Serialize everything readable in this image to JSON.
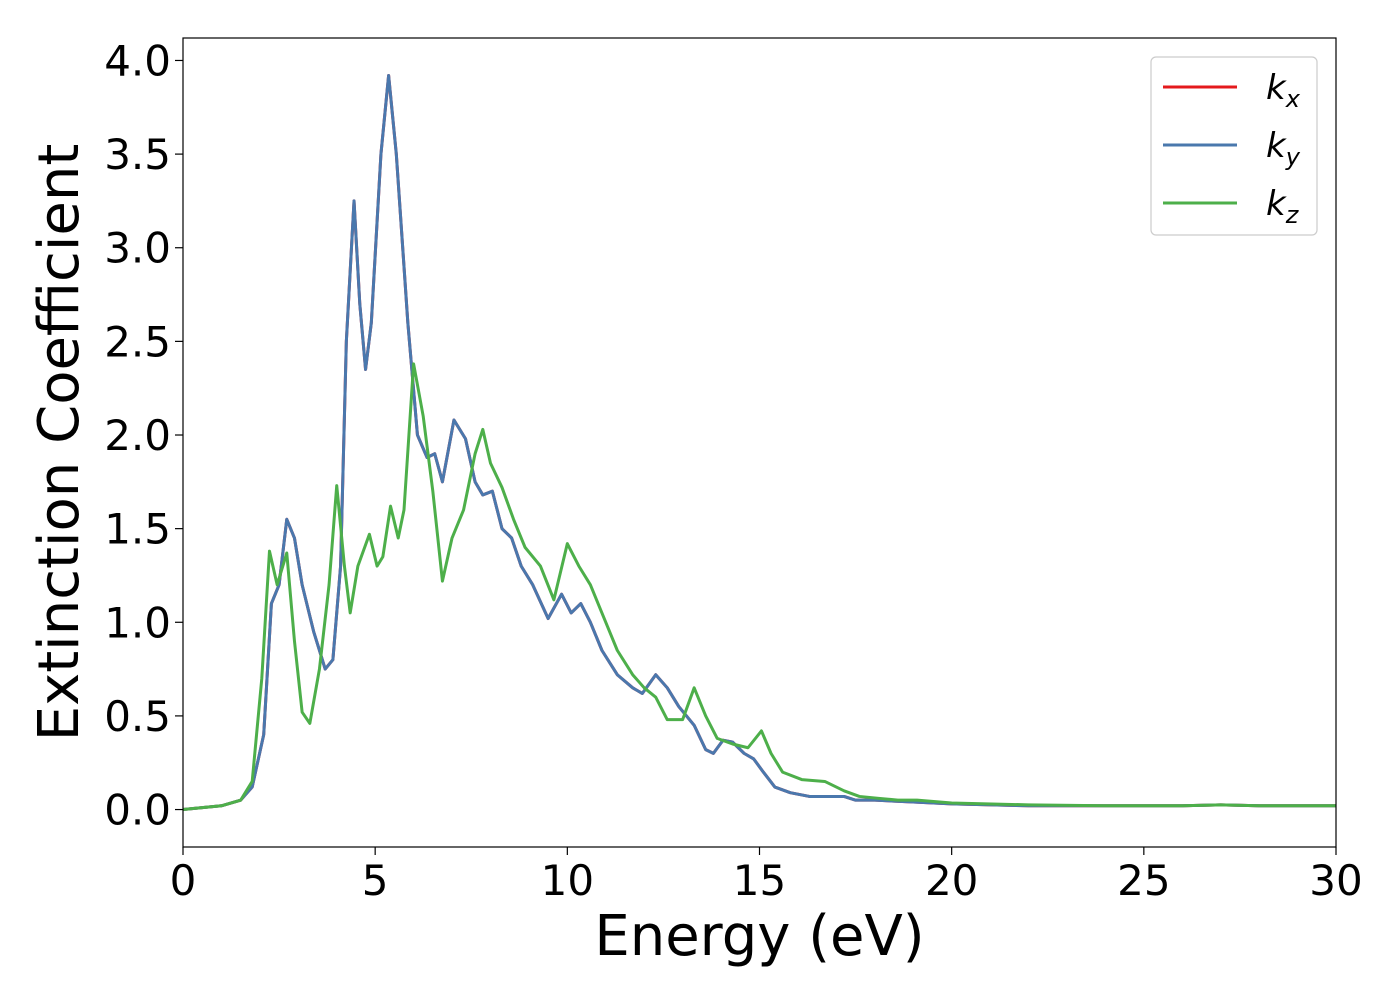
{
  "chart_data": {
    "type": "line",
    "xlabel": "Energy (eV)",
    "ylabel": "Extinction Coefficient",
    "xlim": [
      0,
      30
    ],
    "ylim": [
      -0.2,
      4.12
    ],
    "x_ticks": [
      "0",
      "5",
      "10",
      "15",
      "20",
      "25",
      "30"
    ],
    "y_ticks": [
      "0.0",
      "0.5",
      "1.0",
      "1.5",
      "2.0",
      "2.5",
      "3.0",
      "3.5",
      "4.0"
    ],
    "grid": false,
    "legend_position": "top-right",
    "series": [
      {
        "name": "k",
        "subscript": "x",
        "color": "#e41a1c",
        "points": [
          [
            0,
            0
          ],
          [
            0.5,
            0.01
          ],
          [
            1,
            0.02
          ],
          [
            1.5,
            0.05
          ],
          [
            1.8,
            0.12
          ],
          [
            2.1,
            0.4
          ],
          [
            2.3,
            1.1
          ],
          [
            2.5,
            1.2
          ],
          [
            2.7,
            1.55
          ],
          [
            2.9,
            1.45
          ],
          [
            3.1,
            1.2
          ],
          [
            3.4,
            0.95
          ],
          [
            3.7,
            0.75
          ],
          [
            3.9,
            0.8
          ],
          [
            4.1,
            1.3
          ],
          [
            4.25,
            2.5
          ],
          [
            4.45,
            3.25
          ],
          [
            4.6,
            2.7
          ],
          [
            4.75,
            2.35
          ],
          [
            4.9,
            2.6
          ],
          [
            5.15,
            3.5
          ],
          [
            5.35,
            3.92
          ],
          [
            5.55,
            3.5
          ],
          [
            5.85,
            2.6
          ],
          [
            6.1,
            2.0
          ],
          [
            6.35,
            1.88
          ],
          [
            6.55,
            1.9
          ],
          [
            6.75,
            1.75
          ],
          [
            7.05,
            2.08
          ],
          [
            7.35,
            1.98
          ],
          [
            7.6,
            1.75
          ],
          [
            7.8,
            1.68
          ],
          [
            8.05,
            1.7
          ],
          [
            8.3,
            1.5
          ],
          [
            8.55,
            1.45
          ],
          [
            8.8,
            1.3
          ],
          [
            9.1,
            1.2
          ],
          [
            9.5,
            1.02
          ],
          [
            9.85,
            1.15
          ],
          [
            10.1,
            1.05
          ],
          [
            10.35,
            1.1
          ],
          [
            10.6,
            1.0
          ],
          [
            10.9,
            0.85
          ],
          [
            11.3,
            0.72
          ],
          [
            11.7,
            0.65
          ],
          [
            11.95,
            0.62
          ],
          [
            12.3,
            0.72
          ],
          [
            12.6,
            0.65
          ],
          [
            12.9,
            0.55
          ],
          [
            13.3,
            0.45
          ],
          [
            13.6,
            0.32
          ],
          [
            13.8,
            0.3
          ],
          [
            14.05,
            0.37
          ],
          [
            14.3,
            0.36
          ],
          [
            14.6,
            0.3
          ],
          [
            14.85,
            0.27
          ],
          [
            15.1,
            0.2
          ],
          [
            15.4,
            0.12
          ],
          [
            15.8,
            0.09
          ],
          [
            16.3,
            0.07
          ],
          [
            16.8,
            0.07
          ],
          [
            17.2,
            0.07
          ],
          [
            17.5,
            0.05
          ],
          [
            18,
            0.05
          ],
          [
            18.5,
            0.045
          ],
          [
            19,
            0.04
          ],
          [
            20,
            0.03
          ],
          [
            22,
            0.02
          ],
          [
            24,
            0.02
          ],
          [
            26,
            0.02
          ],
          [
            27,
            0.025
          ],
          [
            28,
            0.02
          ],
          [
            29,
            0.02
          ],
          [
            30,
            0.02
          ]
        ]
      },
      {
        "name": "k",
        "subscript": "y",
        "color": "#4a78ad",
        "points": [
          [
            0,
            0
          ],
          [
            0.5,
            0.01
          ],
          [
            1,
            0.02
          ],
          [
            1.5,
            0.05
          ],
          [
            1.8,
            0.12
          ],
          [
            2.1,
            0.4
          ],
          [
            2.3,
            1.1
          ],
          [
            2.5,
            1.2
          ],
          [
            2.7,
            1.55
          ],
          [
            2.9,
            1.45
          ],
          [
            3.1,
            1.2
          ],
          [
            3.4,
            0.95
          ],
          [
            3.7,
            0.75
          ],
          [
            3.9,
            0.8
          ],
          [
            4.1,
            1.3
          ],
          [
            4.25,
            2.5
          ],
          [
            4.45,
            3.25
          ],
          [
            4.6,
            2.7
          ],
          [
            4.75,
            2.35
          ],
          [
            4.9,
            2.6
          ],
          [
            5.15,
            3.5
          ],
          [
            5.35,
            3.92
          ],
          [
            5.55,
            3.5
          ],
          [
            5.85,
            2.6
          ],
          [
            6.1,
            2.0
          ],
          [
            6.35,
            1.88
          ],
          [
            6.55,
            1.9
          ],
          [
            6.75,
            1.75
          ],
          [
            7.05,
            2.08
          ],
          [
            7.35,
            1.98
          ],
          [
            7.6,
            1.75
          ],
          [
            7.8,
            1.68
          ],
          [
            8.05,
            1.7
          ],
          [
            8.3,
            1.5
          ],
          [
            8.55,
            1.45
          ],
          [
            8.8,
            1.3
          ],
          [
            9.1,
            1.2
          ],
          [
            9.5,
            1.02
          ],
          [
            9.85,
            1.15
          ],
          [
            10.1,
            1.05
          ],
          [
            10.35,
            1.1
          ],
          [
            10.6,
            1.0
          ],
          [
            10.9,
            0.85
          ],
          [
            11.3,
            0.72
          ],
          [
            11.7,
            0.65
          ],
          [
            11.95,
            0.62
          ],
          [
            12.3,
            0.72
          ],
          [
            12.6,
            0.65
          ],
          [
            12.9,
            0.55
          ],
          [
            13.3,
            0.45
          ],
          [
            13.6,
            0.32
          ],
          [
            13.8,
            0.3
          ],
          [
            14.05,
            0.37
          ],
          [
            14.3,
            0.36
          ],
          [
            14.6,
            0.3
          ],
          [
            14.85,
            0.27
          ],
          [
            15.1,
            0.2
          ],
          [
            15.4,
            0.12
          ],
          [
            15.8,
            0.09
          ],
          [
            16.3,
            0.07
          ],
          [
            16.8,
            0.07
          ],
          [
            17.2,
            0.07
          ],
          [
            17.5,
            0.05
          ],
          [
            18,
            0.05
          ],
          [
            18.5,
            0.045
          ],
          [
            19,
            0.04
          ],
          [
            20,
            0.03
          ],
          [
            22,
            0.02
          ],
          [
            24,
            0.02
          ],
          [
            26,
            0.02
          ],
          [
            27,
            0.025
          ],
          [
            28,
            0.02
          ],
          [
            29,
            0.02
          ],
          [
            30,
            0.02
          ]
        ]
      },
      {
        "name": "k",
        "subscript": "z",
        "color": "#4daf4a",
        "points": [
          [
            0,
            0
          ],
          [
            0.5,
            0.01
          ],
          [
            1,
            0.02
          ],
          [
            1.5,
            0.05
          ],
          [
            1.8,
            0.15
          ],
          [
            2.05,
            0.7
          ],
          [
            2.25,
            1.38
          ],
          [
            2.45,
            1.2
          ],
          [
            2.7,
            1.37
          ],
          [
            2.9,
            0.9
          ],
          [
            3.1,
            0.52
          ],
          [
            3.3,
            0.46
          ],
          [
            3.55,
            0.75
          ],
          [
            3.8,
            1.2
          ],
          [
            4.0,
            1.73
          ],
          [
            4.2,
            1.3
          ],
          [
            4.35,
            1.05
          ],
          [
            4.55,
            1.3
          ],
          [
            4.85,
            1.47
          ],
          [
            5.05,
            1.3
          ],
          [
            5.2,
            1.35
          ],
          [
            5.4,
            1.62
          ],
          [
            5.6,
            1.45
          ],
          [
            5.75,
            1.6
          ],
          [
            6.0,
            2.38
          ],
          [
            6.25,
            2.1
          ],
          [
            6.5,
            1.7
          ],
          [
            6.75,
            1.22
          ],
          [
            7.0,
            1.45
          ],
          [
            7.3,
            1.6
          ],
          [
            7.6,
            1.9
          ],
          [
            7.8,
            2.03
          ],
          [
            8.0,
            1.85
          ],
          [
            8.3,
            1.72
          ],
          [
            8.6,
            1.55
          ],
          [
            8.9,
            1.4
          ],
          [
            9.3,
            1.3
          ],
          [
            9.65,
            1.12
          ],
          [
            10.0,
            1.42
          ],
          [
            10.3,
            1.3
          ],
          [
            10.6,
            1.2
          ],
          [
            10.9,
            1.05
          ],
          [
            11.3,
            0.85
          ],
          [
            11.7,
            0.72
          ],
          [
            12.0,
            0.65
          ],
          [
            12.3,
            0.6
          ],
          [
            12.6,
            0.48
          ],
          [
            13.0,
            0.48
          ],
          [
            13.3,
            0.65
          ],
          [
            13.6,
            0.5
          ],
          [
            13.9,
            0.38
          ],
          [
            14.3,
            0.35
          ],
          [
            14.7,
            0.33
          ],
          [
            15.05,
            0.42
          ],
          [
            15.3,
            0.3
          ],
          [
            15.6,
            0.2
          ],
          [
            16.1,
            0.16
          ],
          [
            16.7,
            0.15
          ],
          [
            17.2,
            0.1
          ],
          [
            17.6,
            0.07
          ],
          [
            18.1,
            0.06
          ],
          [
            18.6,
            0.05
          ],
          [
            19.1,
            0.05
          ],
          [
            20,
            0.035
          ],
          [
            22,
            0.025
          ],
          [
            24,
            0.02
          ],
          [
            26,
            0.02
          ],
          [
            27,
            0.025
          ],
          [
            28,
            0.02
          ],
          [
            29,
            0.02
          ],
          [
            30,
            0.02
          ]
        ]
      }
    ]
  }
}
